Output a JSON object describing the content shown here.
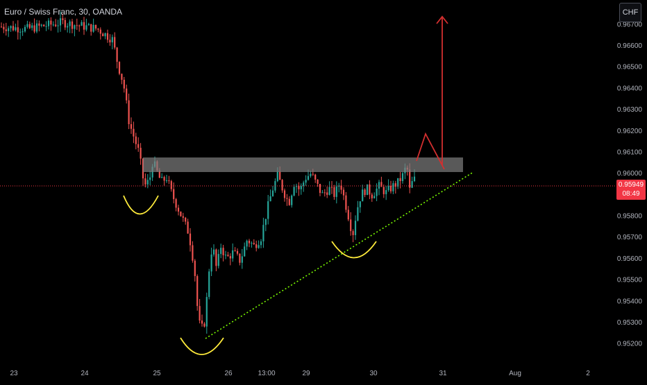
{
  "header": {
    "symbol_title": "Euro / Swiss Franc, 30, OANDA",
    "currency_button": "CHF"
  },
  "last_price": {
    "value": "0.95949",
    "countdown": "08:49"
  },
  "colors": {
    "up": "#26a69a",
    "down": "#ef5350",
    "support_curve": "#ffeb3b",
    "trendline": "#7cfc00",
    "projection": "#d32f2f",
    "resistance_zone": "#7f7f7f",
    "price_line": "#f23645"
  },
  "chart_data": {
    "type": "candlestick",
    "symbol": "EURCHF",
    "timeframe": "30",
    "y_axis": {
      "min": 0.9515,
      "max": 0.9675,
      "ticks": [
        "0.96700",
        "0.96600",
        "0.96500",
        "0.96400",
        "0.96300",
        "0.96200",
        "0.96100",
        "0.96000",
        "0.95949",
        "0.95800",
        "0.95700",
        "0.95600",
        "0.95500",
        "0.95400",
        "0.95300",
        "0.95200"
      ]
    },
    "x_axis": {
      "ticks": [
        "23",
        "24",
        "25",
        "26",
        "13:00",
        "29",
        "30",
        "31",
        "Aug",
        "2"
      ]
    },
    "price_path": [
      [
        0,
        0.9669
      ],
      [
        40,
        0.9668
      ],
      [
        90,
        0.9671
      ],
      [
        140,
        0.9668
      ],
      [
        162,
        0.9663
      ],
      [
        170,
        0.9651
      ],
      [
        178,
        0.9642
      ],
      [
        186,
        0.9624
      ],
      [
        194,
        0.9616
      ],
      [
        200,
        0.961
      ],
      [
        206,
        0.9598
      ],
      [
        210,
        0.9594
      ],
      [
        216,
        0.9598
      ],
      [
        220,
        0.9606
      ],
      [
        226,
        0.9601
      ],
      [
        232,
        0.9596
      ],
      [
        240,
        0.9598
      ],
      [
        248,
        0.959
      ],
      [
        256,
        0.9584
      ],
      [
        264,
        0.9578
      ],
      [
        272,
        0.9572
      ],
      [
        280,
        0.9556
      ],
      [
        286,
        0.953
      ],
      [
        292,
        0.9527
      ],
      [
        296,
        0.9532
      ],
      [
        300,
        0.9552
      ],
      [
        306,
        0.9567
      ],
      [
        312,
        0.9555
      ],
      [
        318,
        0.9566
      ],
      [
        326,
        0.956
      ],
      [
        336,
        0.9563
      ],
      [
        346,
        0.9559
      ],
      [
        356,
        0.9569
      ],
      [
        366,
        0.9566
      ],
      [
        376,
        0.957
      ],
      [
        384,
        0.9582
      ],
      [
        392,
        0.9592
      ],
      [
        400,
        0.9599
      ],
      [
        408,
        0.9592
      ],
      [
        416,
        0.9586
      ],
      [
        424,
        0.9596
      ],
      [
        432,
        0.9592
      ],
      [
        440,
        0.9598
      ],
      [
        448,
        0.96
      ],
      [
        456,
        0.9595
      ],
      [
        464,
        0.959
      ],
      [
        474,
        0.9593
      ],
      [
        482,
        0.959
      ],
      [
        490,
        0.9596
      ],
      [
        496,
        0.9588
      ],
      [
        502,
        0.958
      ],
      [
        508,
        0.9571
      ],
      [
        514,
        0.9583
      ],
      [
        520,
        0.959
      ],
      [
        528,
        0.9593
      ],
      [
        536,
        0.959
      ],
      [
        546,
        0.9594
      ],
      [
        556,
        0.9591
      ],
      [
        566,
        0.9594
      ],
      [
        574,
        0.9596
      ],
      [
        580,
        0.9599
      ],
      [
        586,
        0.9604
      ],
      [
        590,
        0.9592
      ],
      [
        596,
        0.9598
      ],
      [
        600,
        0.9595
      ]
    ],
    "resistance_zone": {
      "from": 0.96015,
      "to": 0.96085
    },
    "last_price": 0.95949,
    "annotations": [
      "Three curved support arcs at the lows (inverse head and shoulders)",
      "Dotted ascending trendline",
      "Red projected path breaking above resistance with an up arrow"
    ],
    "grid": false
  }
}
